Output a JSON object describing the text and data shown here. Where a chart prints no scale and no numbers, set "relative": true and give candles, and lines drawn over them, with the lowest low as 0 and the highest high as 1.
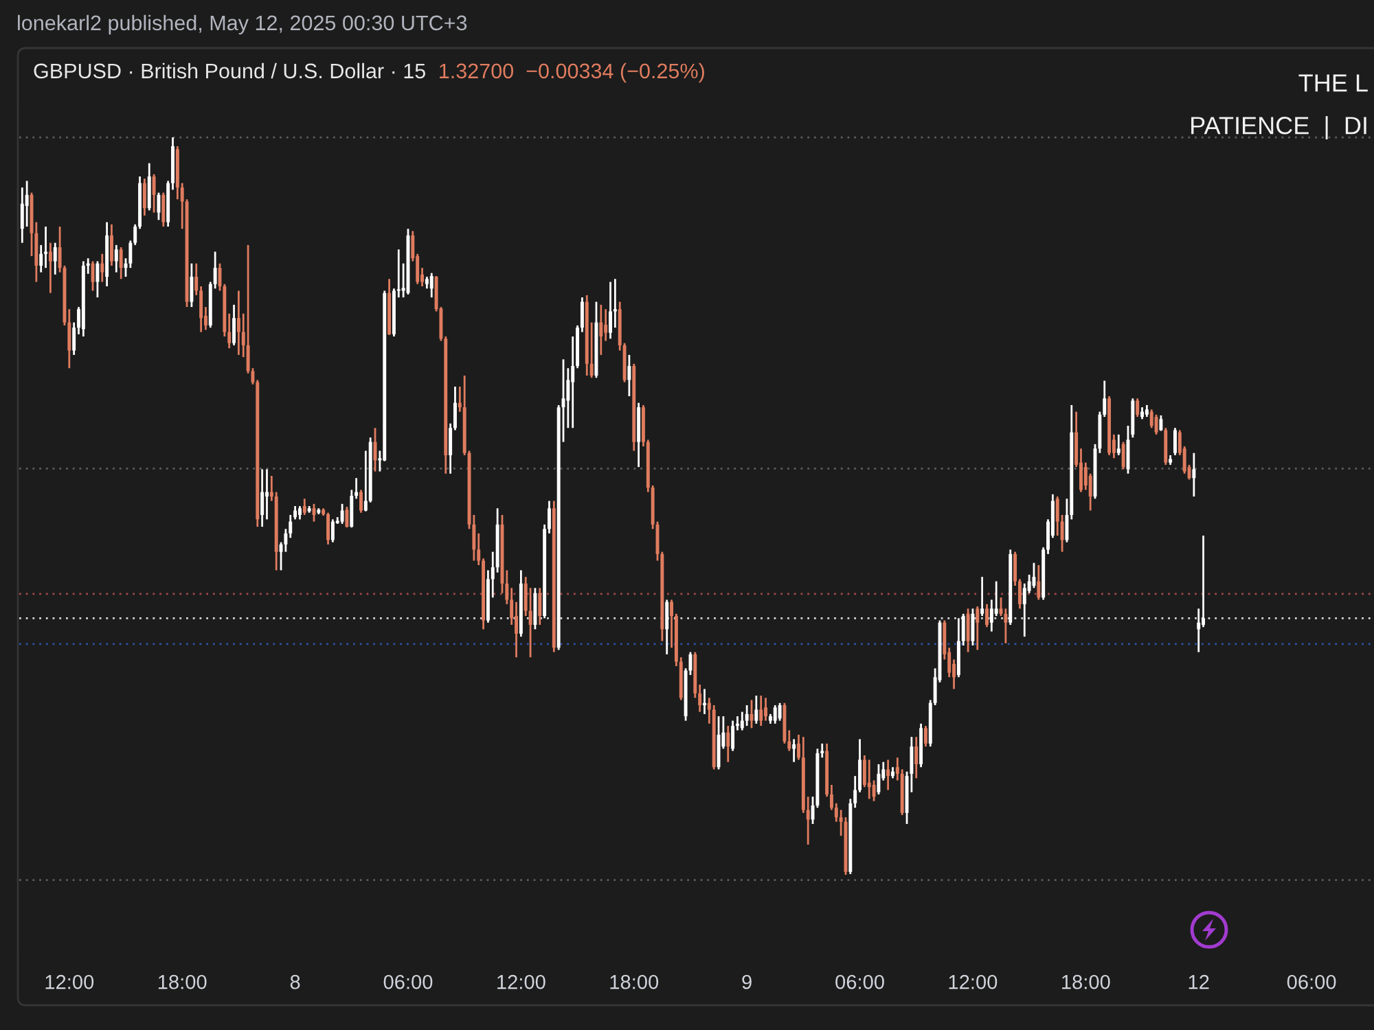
{
  "chart_data": {
    "type": "candlestick",
    "title": "GBPUSD · British Pound / U.S. Dollar · 15",
    "subtitle": "1.32700  −0.00334 (−0.25%)",
    "annotations": [
      "lonekarl2 published, May 12, 2025 00:30 UTC+3",
      "THE L",
      "PATIENCE  |  DI"
    ],
    "relative": true,
    "categories": [
      null,
      null,
      null,
      null,
      null,
      null,
      null,
      null,
      null,
      null,
      "12:00",
      null,
      null,
      null,
      null,
      null,
      null,
      null,
      null,
      null,
      null,
      null,
      null,
      null,
      null,
      null,
      null,
      null,
      null,
      null,
      null,
      null,
      null,
      null,
      "18:00",
      null,
      null,
      null,
      null,
      null,
      null,
      null,
      null,
      null,
      null,
      null,
      null,
      null,
      null,
      null,
      null,
      null,
      null,
      null,
      null,
      null,
      null,
      null,
      "8",
      null,
      null,
      null,
      null,
      null,
      null,
      null,
      null,
      null,
      null,
      null,
      null,
      null,
      null,
      null,
      null,
      null,
      null,
      null,
      null,
      null,
      null,
      null,
      "06:00",
      null,
      null,
      null,
      null,
      null,
      null,
      null,
      null,
      null,
      null,
      null,
      null,
      null,
      null,
      null,
      null,
      null,
      null,
      null,
      null,
      null,
      null,
      null,
      "12:00",
      null,
      null,
      null,
      null,
      null,
      null,
      null,
      null,
      null,
      null,
      null,
      null,
      null,
      null,
      null,
      null,
      null,
      null,
      null,
      null,
      null,
      null,
      null,
      "18:00",
      null,
      null,
      null,
      null,
      null,
      null,
      null,
      null,
      null,
      null,
      null,
      null,
      null,
      null,
      null,
      null,
      null,
      null,
      null,
      null,
      null,
      null,
      null,
      "9",
      null,
      null,
      null,
      null,
      null,
      null,
      null,
      null,
      null,
      null,
      null,
      null,
      null,
      null,
      null,
      null,
      null,
      null,
      null,
      null,
      null,
      null,
      null,
      "06:00",
      null,
      null,
      null,
      null,
      null,
      null,
      null,
      null,
      null,
      null,
      null,
      null,
      null,
      null,
      null,
      null,
      null,
      null,
      null,
      null,
      null,
      null,
      null,
      "12:00",
      null,
      null,
      null,
      null,
      null,
      null,
      null,
      null,
      null,
      null,
      null,
      null,
      null,
      null,
      null,
      null,
      null,
      null,
      null,
      null,
      null,
      null,
      null,
      "18:00",
      null,
      null,
      null,
      null,
      null,
      null,
      null,
      null,
      null,
      null,
      null,
      null,
      null,
      null,
      null,
      null,
      null,
      null,
      null,
      null,
      null,
      null,
      null,
      "12",
      null,
      null,
      null,
      null,
      null,
      null,
      null,
      null,
      null,
      null,
      null,
      null,
      null,
      null,
      null,
      null,
      null,
      null,
      null,
      null,
      null,
      null,
      null,
      "06:00",
      null,
      null,
      null,
      null,
      null,
      null,
      null,
      null,
      null,
      null,
      null,
      null,
      null
    ],
    "ohlc": [
      [
        0.876,
        0.932,
        0.857,
        0.91
      ],
      [
        0.907,
        0.941,
        0.879,
        0.922
      ],
      [
        0.922,
        0.925,
        0.839,
        0.87
      ],
      [
        0.87,
        0.885,
        0.804,
        0.826
      ],
      [
        0.826,
        0.854,
        0.817,
        0.842
      ],
      [
        0.842,
        0.879,
        0.823,
        0.845
      ],
      [
        0.845,
        0.857,
        0.789,
        0.832
      ],
      [
        0.832,
        0.857,
        0.814,
        0.851
      ],
      [
        0.851,
        0.879,
        0.817,
        0.823
      ],
      [
        0.823,
        0.826,
        0.745,
        0.749
      ],
      [
        0.749,
        0.767,
        0.687,
        0.711
      ],
      [
        0.711,
        0.749,
        0.705,
        0.742
      ],
      [
        0.742,
        0.77,
        0.733,
        0.767
      ],
      [
        0.74,
        0.832,
        0.73,
        0.826
      ],
      [
        0.826,
        0.836,
        0.815,
        0.829
      ],
      [
        0.829,
        0.832,
        0.792,
        0.804
      ],
      [
        0.804,
        0.832,
        0.783,
        0.829
      ],
      [
        0.829,
        0.842,
        0.804,
        0.817
      ],
      [
        0.811,
        0.885,
        0.798,
        0.867
      ],
      [
        0.867,
        0.882,
        0.826,
        0.832
      ],
      [
        0.832,
        0.854,
        0.817,
        0.848
      ],
      [
        0.848,
        0.851,
        0.808,
        0.823
      ],
      [
        0.823,
        0.836,
        0.811,
        0.829
      ],
      [
        0.829,
        0.86,
        0.823,
        0.857
      ],
      [
        0.857,
        0.882,
        0.854,
        0.879
      ],
      [
        0.879,
        0.947,
        0.876,
        0.938
      ],
      [
        0.938,
        0.944,
        0.894,
        0.904
      ],
      [
        0.904,
        0.965,
        0.901,
        0.947
      ],
      [
        0.947,
        0.95,
        0.898,
        0.922
      ],
      [
        0.898,
        0.925,
        0.888,
        0.922
      ],
      [
        0.922,
        0.925,
        0.879,
        0.885
      ],
      [
        0.885,
        0.941,
        0.879,
        0.938
      ],
      [
        0.938,
        1.0,
        0.929,
        0.988
      ],
      [
        0.984,
        0.988,
        0.916,
        0.932
      ],
      [
        0.932,
        0.938,
        0.876,
        0.913
      ],
      [
        0.913,
        0.916,
        0.77,
        0.777
      ],
      [
        0.777,
        0.829,
        0.77,
        0.811
      ],
      [
        0.811,
        0.829,
        0.786,
        0.792
      ],
      [
        0.792,
        0.798,
        0.736,
        0.755
      ],
      [
        0.758,
        0.77,
        0.739,
        0.745
      ],
      [
        0.745,
        0.804,
        0.742,
        0.801
      ],
      [
        0.801,
        0.845,
        0.795,
        0.823
      ],
      [
        0.823,
        0.829,
        0.792,
        0.798
      ],
      [
        0.798,
        0.801,
        0.73,
        0.736
      ],
      [
        0.736,
        0.761,
        0.714,
        0.721
      ],
      [
        0.721,
        0.773,
        0.718,
        0.755
      ],
      [
        0.755,
        0.792,
        0.705,
        0.736
      ],
      [
        0.736,
        0.761,
        0.702,
        0.718
      ],
      [
        0.718,
        0.854,
        0.68,
        0.683
      ],
      [
        0.683,
        0.687,
        0.665,
        0.668
      ],
      [
        0.668,
        0.671,
        0.472,
        0.482
      ],
      [
        0.488,
        0.55,
        0.472,
        0.519
      ],
      [
        0.513,
        0.55,
        0.482,
        0.519
      ],
      [
        0.519,
        0.541,
        0.507,
        0.513
      ],
      [
        0.513,
        0.519,
        0.413,
        0.438
      ],
      [
        0.438,
        0.451,
        0.413,
        0.448
      ],
      [
        0.448,
        0.469,
        0.438,
        0.463
      ],
      [
        0.463,
        0.488,
        0.457,
        0.479
      ],
      [
        0.485,
        0.5,
        0.482,
        0.494
      ],
      [
        0.488,
        0.5,
        0.482,
        0.497
      ],
      [
        0.5,
        0.51,
        0.488,
        0.491
      ],
      [
        0.493,
        0.5,
        0.491,
        0.497
      ],
      [
        0.497,
        0.503,
        0.479,
        0.488
      ],
      [
        0.491,
        0.497,
        0.489,
        0.495
      ],
      [
        0.495,
        0.497,
        0.487,
        0.489
      ],
      [
        0.489,
        0.491,
        0.448,
        0.454
      ],
      [
        0.454,
        0.482,
        0.451,
        0.479
      ],
      [
        0.477,
        0.485,
        0.476,
        0.48
      ],
      [
        0.479,
        0.503,
        0.476,
        0.494
      ],
      [
        0.495,
        0.499,
        0.471,
        0.472
      ],
      [
        0.472,
        0.522,
        0.471,
        0.514
      ],
      [
        0.514,
        0.538,
        0.51,
        0.519
      ],
      [
        0.519,
        0.522,
        0.491,
        0.494
      ],
      [
        0.494,
        0.575,
        0.493,
        0.507
      ],
      [
        0.507,
        0.593,
        0.505,
        0.587
      ],
      [
        0.587,
        0.606,
        0.547,
        0.562
      ],
      [
        0.562,
        0.575,
        0.547,
        0.565
      ],
      [
        0.562,
        0.792,
        0.561,
        0.789
      ],
      [
        0.789,
        0.808,
        0.732,
        0.733
      ],
      [
        0.733,
        0.795,
        0.73,
        0.792
      ],
      [
        0.792,
        0.848,
        0.783,
        0.794
      ],
      [
        0.792,
        0.829,
        0.783,
        0.796
      ],
      [
        0.789,
        0.876,
        0.787,
        0.867
      ],
      [
        0.867,
        0.873,
        0.832,
        0.836
      ],
      [
        0.839,
        0.842,
        0.801,
        0.804
      ],
      [
        0.814,
        0.823,
        0.798,
        0.804
      ],
      [
        0.801,
        0.811,
        0.795,
        0.808
      ],
      [
        0.795,
        0.816,
        0.783,
        0.812
      ],
      [
        0.811,
        0.812,
        0.764,
        0.767
      ],
      [
        0.768,
        0.77,
        0.724,
        0.727
      ],
      [
        0.727,
        0.73,
        0.544,
        0.569
      ],
      [
        0.569,
        0.612,
        0.544,
        0.606
      ],
      [
        0.606,
        0.662,
        0.603,
        0.64
      ],
      [
        0.64,
        0.662,
        0.628,
        0.634
      ],
      [
        0.634,
        0.677,
        0.569,
        0.572
      ],
      [
        0.572,
        0.575,
        0.469,
        0.475
      ],
      [
        0.475,
        0.488,
        0.426,
        0.441
      ],
      [
        0.441,
        0.463,
        0.42,
        0.426
      ],
      [
        0.426,
        0.429,
        0.333,
        0.345
      ],
      [
        0.345,
        0.413,
        0.342,
        0.401
      ],
      [
        0.401,
        0.438,
        0.376,
        0.417
      ],
      [
        0.417,
        0.497,
        0.41,
        0.475
      ],
      [
        0.475,
        0.488,
        0.382,
        0.395
      ],
      [
        0.395,
        0.413,
        0.367,
        0.373
      ],
      [
        0.373,
        0.389,
        0.339,
        0.348
      ],
      [
        0.351,
        0.37,
        0.295,
        0.327
      ],
      [
        0.327,
        0.413,
        0.323,
        0.395
      ],
      [
        0.395,
        0.404,
        0.351,
        0.358
      ],
      [
        0.358,
        0.389,
        0.295,
        0.339
      ],
      [
        0.339,
        0.389,
        0.333,
        0.382
      ],
      [
        0.382,
        0.389,
        0.339,
        0.351
      ],
      [
        0.351,
        0.475,
        0.348,
        0.469
      ],
      [
        0.469,
        0.507,
        0.463,
        0.497
      ],
      [
        0.497,
        0.507,
        0.302,
        0.308
      ],
      [
        0.308,
        0.637,
        0.305,
        0.634
      ],
      [
        0.634,
        0.699,
        0.587,
        0.646
      ],
      [
        0.643,
        0.687,
        0.606,
        0.671
      ],
      [
        0.668,
        0.73,
        0.606,
        0.69
      ],
      [
        0.69,
        0.745,
        0.687,
        0.742
      ],
      [
        0.742,
        0.783,
        0.736,
        0.777
      ],
      [
        0.777,
        0.786,
        0.677,
        0.693
      ],
      [
        0.693,
        0.749,
        0.674,
        0.677
      ],
      [
        0.677,
        0.777,
        0.674,
        0.749
      ],
      [
        0.749,
        0.773,
        0.705,
        0.73
      ],
      [
        0.746,
        0.767,
        0.724,
        0.735
      ],
      [
        0.735,
        0.804,
        0.727,
        0.764
      ],
      [
        0.764,
        0.808,
        0.742,
        0.767
      ],
      [
        0.767,
        0.777,
        0.711,
        0.718
      ],
      [
        0.718,
        0.721,
        0.668,
        0.671
      ],
      [
        0.671,
        0.705,
        0.649,
        0.69
      ],
      [
        0.69,
        0.693,
        0.575,
        0.587
      ],
      [
        0.587,
        0.64,
        0.553,
        0.634
      ],
      [
        0.634,
        0.637,
        0.581,
        0.587
      ],
      [
        0.587,
        0.59,
        0.519,
        0.525
      ],
      [
        0.525,
        0.528,
        0.469,
        0.475
      ],
      [
        0.475,
        0.479,
        0.426,
        0.435
      ],
      [
        0.435,
        0.438,
        0.317,
        0.333
      ],
      [
        0.333,
        0.373,
        0.299,
        0.37
      ],
      [
        0.37,
        0.373,
        0.308,
        0.351
      ],
      [
        0.351,
        0.354,
        0.283,
        0.289
      ],
      [
        0.289,
        0.295,
        0.237,
        0.24
      ],
      [
        0.215,
        0.28,
        0.209,
        0.277
      ],
      [
        0.277,
        0.302,
        0.271,
        0.299
      ],
      [
        0.299,
        0.302,
        0.24,
        0.246
      ],
      [
        0.246,
        0.258,
        0.221,
        0.23
      ],
      [
        0.23,
        0.252,
        0.218,
        0.233
      ],
      [
        0.233,
        0.24,
        0.205,
        0.224
      ],
      [
        0.224,
        0.23,
        0.143,
        0.146
      ],
      [
        0.146,
        0.215,
        0.143,
        0.19
      ],
      [
        0.174,
        0.215,
        0.171,
        0.193
      ],
      [
        0.193,
        0.202,
        0.153,
        0.174
      ],
      [
        0.171,
        0.209,
        0.168,
        0.202
      ],
      [
        0.202,
        0.215,
        0.196,
        0.205
      ],
      [
        0.199,
        0.221,
        0.196,
        0.209
      ],
      [
        0.209,
        0.23,
        0.202,
        0.218
      ],
      [
        0.218,
        0.237,
        0.199,
        0.209
      ],
      [
        0.209,
        0.243,
        0.205,
        0.224
      ],
      [
        0.224,
        0.243,
        0.202,
        0.209
      ],
      [
        0.227,
        0.24,
        0.209,
        0.215
      ],
      [
        0.209,
        0.218,
        0.205,
        0.215
      ],
      [
        0.209,
        0.23,
        0.205,
        0.227
      ],
      [
        0.212,
        0.233,
        0.209,
        0.23
      ],
      [
        0.23,
        0.233,
        0.178,
        0.181
      ],
      [
        0.181,
        0.196,
        0.168,
        0.171
      ],
      [
        0.171,
        0.184,
        0.153,
        0.177
      ],
      [
        0.178,
        0.19,
        0.156,
        0.159
      ],
      [
        0.159,
        0.187,
        0.084,
        0.088
      ],
      [
        0.088,
        0.106,
        0.041,
        0.075
      ],
      [
        0.075,
        0.106,
        0.069,
        0.094
      ],
      [
        0.094,
        0.171,
        0.091,
        0.165
      ],
      [
        0.165,
        0.178,
        0.159,
        0.168
      ],
      [
        0.168,
        0.178,
        0.106,
        0.109
      ],
      [
        0.109,
        0.122,
        0.088,
        0.091
      ],
      [
        0.091,
        0.097,
        0.072,
        0.078
      ],
      [
        0.078,
        0.088,
        0.053,
        0.072
      ],
      [
        0.072,
        0.078,
        0.0,
        0.004
      ],
      [
        0.004,
        0.103,
        0.001,
        0.097
      ],
      [
        0.097,
        0.134,
        0.091,
        0.115
      ],
      [
        0.115,
        0.184,
        0.112,
        0.156
      ],
      [
        0.156,
        0.162,
        0.119,
        0.122
      ],
      [
        0.125,
        0.156,
        0.103,
        0.119
      ],
      [
        0.122,
        0.128,
        0.1,
        0.106
      ],
      [
        0.112,
        0.15,
        0.109,
        0.137
      ],
      [
        0.131,
        0.153,
        0.128,
        0.143
      ],
      [
        0.143,
        0.156,
        0.115,
        0.134
      ],
      [
        0.134,
        0.146,
        0.131,
        0.14
      ],
      [
        0.146,
        0.159,
        0.128,
        0.137
      ],
      [
        0.137,
        0.143,
        0.081,
        0.084
      ],
      [
        0.084,
        0.14,
        0.069,
        0.134
      ],
      [
        0.137,
        0.187,
        0.112,
        0.174
      ],
      [
        0.174,
        0.187,
        0.131,
        0.15
      ],
      [
        0.15,
        0.205,
        0.146,
        0.199
      ],
      [
        0.199,
        0.202,
        0.174,
        0.178
      ],
      [
        0.178,
        0.237,
        0.174,
        0.233
      ],
      [
        0.233,
        0.28,
        0.23,
        0.268
      ],
      [
        0.264,
        0.345,
        0.261,
        0.342
      ],
      [
        0.342,
        0.345,
        0.292,
        0.299
      ],
      [
        0.302,
        0.308,
        0.268,
        0.274
      ],
      [
        0.286,
        0.292,
        0.252,
        0.268
      ],
      [
        0.271,
        0.348,
        0.268,
        0.317
      ],
      [
        0.317,
        0.354,
        0.311,
        0.351
      ],
      [
        0.354,
        0.361,
        0.302,
        0.317
      ],
      [
        0.317,
        0.361,
        0.311,
        0.354
      ],
      [
        0.361,
        0.364,
        0.305,
        0.342
      ],
      [
        0.354,
        0.404,
        0.351,
        0.361
      ],
      [
        0.361,
        0.367,
        0.336,
        0.339
      ],
      [
        0.342,
        0.373,
        0.33,
        0.361
      ],
      [
        0.354,
        0.398,
        0.351,
        0.361
      ],
      [
        0.361,
        0.376,
        0.351,
        0.354
      ],
      [
        0.354,
        0.361,
        0.314,
        0.342
      ],
      [
        0.342,
        0.441,
        0.339,
        0.435
      ],
      [
        0.435,
        0.438,
        0.392,
        0.398
      ],
      [
        0.398,
        0.401,
        0.361,
        0.367
      ],
      [
        0.367,
        0.395,
        0.323,
        0.389
      ],
      [
        0.385,
        0.407,
        0.382,
        0.398
      ],
      [
        0.392,
        0.423,
        0.389,
        0.404
      ],
      [
        0.398,
        0.42,
        0.373,
        0.376
      ],
      [
        0.376,
        0.444,
        0.373,
        0.441
      ],
      [
        0.441,
        0.482,
        0.435,
        0.479
      ],
      [
        0.46,
        0.516,
        0.457,
        0.507
      ],
      [
        0.51,
        0.513,
        0.46,
        0.479
      ],
      [
        0.479,
        0.488,
        0.438,
        0.454
      ],
      [
        0.454,
        0.51,
        0.451,
        0.488
      ],
      [
        0.488,
        0.637,
        0.482,
        0.6
      ],
      [
        0.6,
        0.628,
        0.553,
        0.556
      ],
      [
        0.559,
        0.578,
        0.519,
        0.522
      ],
      [
        0.553,
        0.559,
        0.522,
        0.528
      ],
      [
        0.541,
        0.544,
        0.494,
        0.513
      ],
      [
        0.513,
        0.584,
        0.51,
        0.578
      ],
      [
        0.578,
        0.628,
        0.572,
        0.624
      ],
      [
        0.624,
        0.67,
        0.621,
        0.646
      ],
      [
        0.646,
        0.649,
        0.569,
        0.572
      ],
      [
        0.59,
        0.597,
        0.565,
        0.572
      ],
      [
        0.572,
        0.597,
        0.569,
        0.578
      ],
      [
        0.584,
        0.587,
        0.55,
        0.553
      ],
      [
        0.55,
        0.609,
        0.544,
        0.59
      ],
      [
        0.597,
        0.646,
        0.593,
        0.643
      ],
      [
        0.643,
        0.646,
        0.621,
        0.624
      ],
      [
        0.621,
        0.634,
        0.618,
        0.628
      ],
      [
        0.624,
        0.637,
        0.621,
        0.631
      ],
      [
        0.628,
        0.631,
        0.606,
        0.609
      ],
      [
        0.621,
        0.624,
        0.597,
        0.6
      ],
      [
        0.603,
        0.623,
        0.602,
        0.618
      ],
      [
        0.603,
        0.606,
        0.556,
        0.559
      ],
      [
        0.559,
        0.569,
        0.556,
        0.564
      ],
      [
        0.572,
        0.606,
        0.569,
        0.603
      ],
      [
        0.6,
        0.603,
        0.569,
        0.572
      ],
      [
        0.578,
        0.581,
        0.544,
        0.547
      ],
      [
        0.553,
        0.556,
        0.536,
        0.538
      ],
      [
        0.538,
        0.572,
        0.513,
        0.55
      ],
      [
        0.333,
        0.361,
        0.302,
        0.342
      ],
      [
        0.339,
        0.46,
        0.336,
        0.348
      ],
      null,
      null,
      null,
      null,
      null,
      null,
      null,
      null,
      null,
      null,
      null,
      null,
      null,
      null,
      null,
      null,
      null,
      null,
      null,
      null,
      null,
      null,
      null,
      null,
      null,
      null,
      null,
      null,
      null,
      null,
      null,
      null,
      null,
      null,
      null,
      null
    ],
    "colors": [
      "#ffffff",
      "#ffffff",
      "#e07c5f",
      "#e07c5f",
      "#ffffff",
      "#ffffff",
      "#e07c5f",
      "#ffffff",
      "#e07c5f",
      "#e07c5f",
      "#e07c5f",
      "#ffffff",
      "#ffffff",
      "#ffffff",
      "#ffffff",
      "#e07c5f",
      "#ffffff",
      "#e07c5f",
      "#ffffff",
      "#e07c5f",
      "#ffffff",
      "#e07c5f",
      "#ffffff",
      "#ffffff",
      "#ffffff",
      "#ffffff",
      "#e07c5f",
      "#ffffff",
      "#e07c5f",
      "#ffffff",
      "#e07c5f",
      "#ffffff",
      "#ffffff",
      "#e07c5f",
      "#e07c5f",
      "#e07c5f",
      "#ffffff",
      "#e07c5f",
      "#e07c5f",
      "#e07c5f",
      "#ffffff",
      "#ffffff",
      "#e07c5f",
      "#e07c5f",
      "#e07c5f",
      "#ffffff",
      "#e07c5f",
      "#e07c5f",
      "#e07c5f",
      "#e07c5f",
      "#e07c5f",
      "#ffffff",
      "#ffffff",
      "#e07c5f",
      "#e07c5f",
      "#ffffff",
      "#ffffff",
      "#ffffff",
      "#ffffff",
      "#ffffff",
      "#e07c5f",
      "#ffffff",
      "#e07c5f",
      "#ffffff",
      "#e07c5f",
      "#e07c5f",
      "#ffffff",
      "#ffffff",
      "#ffffff",
      "#e07c5f",
      "#ffffff",
      "#ffffff",
      "#e07c5f",
      "#ffffff",
      "#ffffff",
      "#e07c5f",
      "#ffffff",
      "#ffffff",
      "#e07c5f",
      "#ffffff",
      "#ffffff",
      "#ffffff",
      "#ffffff",
      "#e07c5f",
      "#e07c5f",
      "#e07c5f",
      "#ffffff",
      "#ffffff",
      "#e07c5f",
      "#e07c5f",
      "#e07c5f",
      "#ffffff",
      "#ffffff",
      "#e07c5f",
      "#e07c5f",
      "#e07c5f",
      "#e07c5f",
      "#e07c5f",
      "#e07c5f",
      "#ffffff",
      "#ffffff",
      "#ffffff",
      "#e07c5f",
      "#e07c5f",
      "#e07c5f",
      "#e07c5f",
      "#ffffff",
      "#e07c5f",
      "#e07c5f",
      "#ffffff",
      "#e07c5f",
      "#ffffff",
      "#ffffff",
      "#e07c5f",
      "#ffffff",
      "#ffffff",
      "#ffffff",
      "#ffffff",
      "#ffffff",
      "#ffffff",
      "#e07c5f",
      "#e07c5f",
      "#ffffff",
      "#e07c5f",
      "#e07c5f",
      "#ffffff",
      "#ffffff",
      "#e07c5f",
      "#e07c5f",
      "#ffffff",
      "#e07c5f",
      "#ffffff",
      "#e07c5f",
      "#e07c5f",
      "#e07c5f",
      "#e07c5f",
      "#e07c5f",
      "#ffffff",
      "#e07c5f",
      "#e07c5f",
      "#e07c5f",
      "#ffffff",
      "#ffffff",
      "#e07c5f",
      "#e07c5f",
      "#ffffff",
      "#e07c5f",
      "#e07c5f",
      "#ffffff",
      "#ffffff",
      "#e07c5f",
      "#ffffff",
      "#ffffff",
      "#ffffff",
      "#ffffff",
      "#e07c5f",
      "#ffffff",
      "#e07c5f",
      "#e07c5f",
      "#ffffff",
      "#ffffff",
      "#ffffff",
      "#e07c5f",
      "#e07c5f",
      "#ffffff",
      "#e07c5f",
      "#e07c5f",
      "#e07c5f",
      "#ffffff",
      "#ffffff",
      "#ffffff",
      "#e07c5f",
      "#e07c5f",
      "#e07c5f",
      "#e07c5f",
      "#e07c5f",
      "#ffffff",
      "#ffffff",
      "#ffffff",
      "#e07c5f",
      "#e07c5f",
      "#e07c5f",
      "#ffffff",
      "#ffffff",
      "#e07c5f",
      "#ffffff",
      "#e07c5f",
      "#e07c5f",
      "#ffffff",
      "#ffffff",
      "#e07c5f",
      "#ffffff",
      "#e07c5f",
      "#ffffff",
      "#ffffff",
      "#ffffff",
      "#e07c5f",
      "#e07c5f",
      "#e07c5f",
      "#ffffff",
      "#ffffff",
      "#e07c5f",
      "#ffffff",
      "#e07c5f",
      "#ffffff",
      "#e07c5f",
      "#ffffff",
      "#ffffff",
      "#e07c5f",
      "#e07c5f",
      "#ffffff",
      "#e07c5f",
      "#e07c5f",
      "#ffffff",
      "#ffffff",
      "#ffffff",
      "#e07c5f",
      "#ffffff",
      "#ffffff",
      "#ffffff",
      "#e07c5f",
      "#e07c5f",
      "#ffffff",
      "#ffffff",
      "#e07c5f",
      "#e07c5f",
      "#e07c5f",
      "#e07c5f",
      "#ffffff",
      "#ffffff",
      "#ffffff",
      "#e07c5f",
      "#e07c5f",
      "#ffffff",
      "#e07c5f",
      "#ffffff",
      "#ffffff",
      "#e07c5f",
      "#ffffff",
      "#ffffff",
      "#e07c5f",
      "#e07c5f",
      "#ffffff",
      "#e07c5f",
      "#ffffff",
      "#ffffff",
      "#e07c5f",
      "#e07c5f",
      "#e07c5f",
      "#ffffff",
      "#ffffff",
      "#ffffff",
      null,
      null,
      null,
      null,
      null,
      null,
      null,
      null,
      null,
      null,
      null,
      null,
      null,
      null,
      null,
      null,
      null,
      null,
      null,
      null,
      null,
      null,
      null,
      null,
      null,
      null,
      null,
      null,
      null,
      null,
      null,
      null,
      null,
      null,
      null,
      null
    ],
    "ref_lines": [
      {
        "axis": "y",
        "value": 1.0,
        "color": "#5d5d5d",
        "line_style": "dotted"
      },
      {
        "axis": "y",
        "value": 0.551,
        "color": "#5d5d5d",
        "line_style": "dotted"
      },
      {
        "axis": "y",
        "value": 0.381,
        "color": "#a34a4a",
        "line_style": "dotted"
      },
      {
        "axis": "y",
        "value": 0.348,
        "color": "#d9d9d9",
        "line_style": "dotted"
      },
      {
        "axis": "y",
        "value": 0.313,
        "color": "#2f53a8",
        "line_style": "dotted"
      },
      {
        "axis": "y",
        "value": -0.007,
        "color": "#5d5d5d",
        "line_style": "dotted"
      }
    ]
  }
}
